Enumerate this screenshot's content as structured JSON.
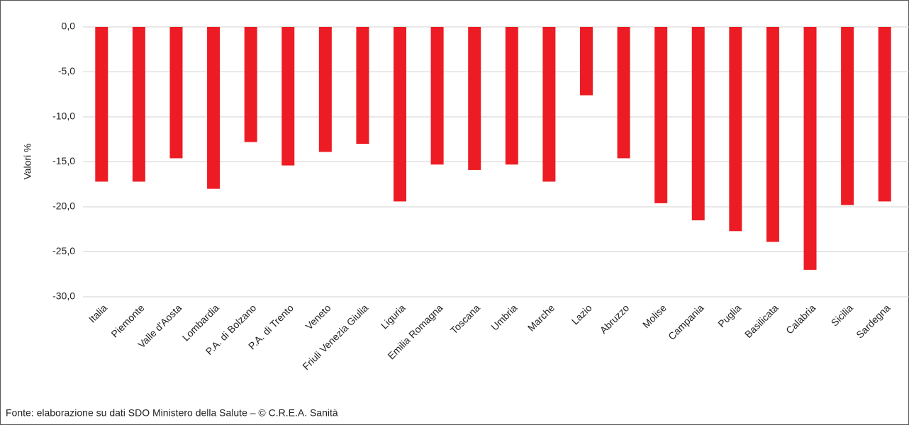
{
  "chart_data": {
    "type": "bar",
    "ylabel": "Valori %",
    "source": "Fonte: elaborazione su dati SDO Ministero della Salute – © C.R.E.A. Sanità",
    "categories": [
      "Italia",
      "Piemonte",
      "Valle d'Aosta",
      "Lombardia",
      "P.A. di Bolzano",
      "P.A. di Trento",
      "Veneto",
      "Friuli Venezia Giulia",
      "Liguria",
      "Emilia Romagna",
      "Toscana",
      "Umbria",
      "Marche",
      "Lazio",
      "Abruzzo",
      "Molise",
      "Campania",
      "Puglia",
      "Basilicata",
      "Calabria",
      "Sicilia",
      "Sardegna"
    ],
    "values": [
      -17.2,
      -17.2,
      -14.6,
      -18.0,
      -12.8,
      -15.4,
      -13.9,
      -13.0,
      -19.4,
      -15.3,
      -15.9,
      -15.3,
      -17.2,
      -7.6,
      -14.6,
      -19.6,
      -21.5,
      -22.7,
      -23.9,
      -27.0,
      -19.8,
      -19.4
    ],
    "color": "#ed1c24",
    "ylim": [
      -30,
      0
    ],
    "yticks": [
      {
        "value": 0,
        "label": "0,0"
      },
      {
        "value": -5,
        "label": "-5,0"
      },
      {
        "value": -10,
        "label": "-10,0"
      },
      {
        "value": -15,
        "label": "-15,0"
      },
      {
        "value": -20,
        "label": "-20,0"
      },
      {
        "value": -25,
        "label": "-25,0"
      },
      {
        "value": -30,
        "label": "-30,0"
      }
    ],
    "grid": true
  }
}
